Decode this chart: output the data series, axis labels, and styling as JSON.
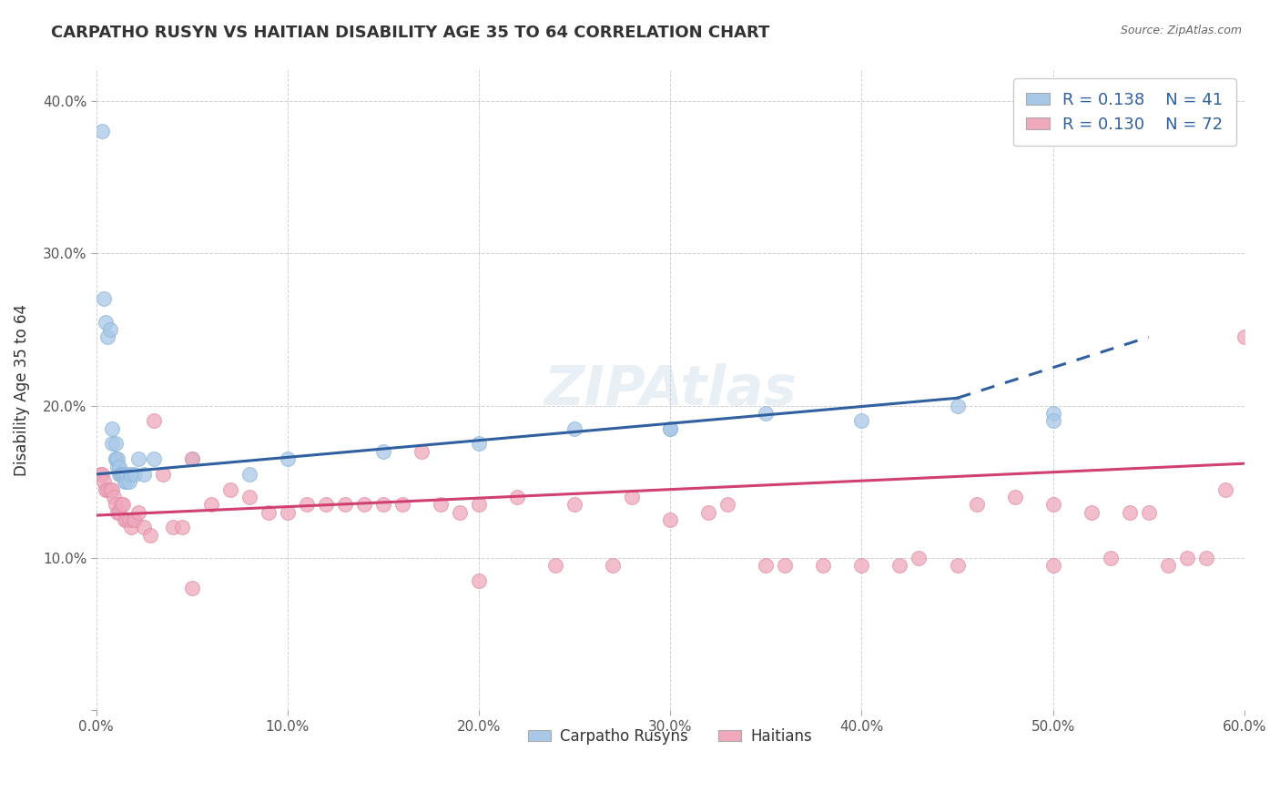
{
  "title": "CARPATHO RUSYN VS HAITIAN DISABILITY AGE 35 TO 64 CORRELATION CHART",
  "source": "Source: ZipAtlas.com",
  "ylabel": "Disability Age 35 to 64",
  "xlim": [
    0.0,
    0.6
  ],
  "ylim": [
    0.0,
    0.42
  ],
  "xticks": [
    0.0,
    0.1,
    0.2,
    0.3,
    0.4,
    0.5,
    0.6
  ],
  "xticklabels": [
    "0.0%",
    "10.0%",
    "20.0%",
    "30.0%",
    "40.0%",
    "50.0%",
    "60.0%"
  ],
  "yticks": [
    0.0,
    0.1,
    0.2,
    0.3,
    0.4
  ],
  "yticklabels": [
    "",
    "10.0%",
    "20.0%",
    "30.0%",
    "40.0%"
  ],
  "r_blue": 0.138,
  "n_blue": 41,
  "r_pink": 0.13,
  "n_pink": 72,
  "legend_labels": [
    "Carpatho Rusyns",
    "Haitians"
  ],
  "blue_color": "#a8c8e8",
  "pink_color": "#f0a8bc",
  "blue_line_color": "#3060a0",
  "pink_line_color": "#d04070",
  "legend_text_color": "#3060a0",
  "background_color": "#ffffff",
  "grid_color": "#cccccc",
  "blue_line_solid_end": 0.45,
  "blue_line_dash_end": 0.55,
  "blue_line_y0": 0.155,
  "blue_line_y_solid_end": 0.205,
  "blue_line_y_dash_end": 0.245,
  "pink_line_y0": 0.128,
  "pink_line_y_end": 0.162,
  "blue_x": [
    0.008,
    0.008,
    0.01,
    0.01,
    0.01,
    0.011,
    0.011,
    0.012,
    0.012,
    0.013,
    0.013,
    0.014,
    0.014,
    0.015,
    0.015,
    0.016,
    0.016,
    0.017,
    0.018,
    0.02,
    0.022,
    0.025,
    0.03,
    0.05,
    0.08,
    0.1,
    0.15,
    0.2,
    0.25,
    0.3,
    0.35,
    0.4,
    0.45,
    0.5,
    0.5,
    0.003,
    0.004,
    0.005,
    0.006,
    0.007,
    0.3
  ],
  "blue_y": [
    0.175,
    0.185,
    0.175,
    0.165,
    0.165,
    0.16,
    0.165,
    0.155,
    0.16,
    0.155,
    0.155,
    0.155,
    0.155,
    0.15,
    0.155,
    0.155,
    0.15,
    0.15,
    0.155,
    0.155,
    0.165,
    0.155,
    0.165,
    0.165,
    0.155,
    0.165,
    0.17,
    0.175,
    0.185,
    0.185,
    0.195,
    0.19,
    0.2,
    0.195,
    0.19,
    0.38,
    0.27,
    0.255,
    0.245,
    0.25,
    0.185
  ],
  "pink_x": [
    0.002,
    0.003,
    0.004,
    0.005,
    0.006,
    0.007,
    0.008,
    0.009,
    0.01,
    0.011,
    0.012,
    0.013,
    0.014,
    0.015,
    0.016,
    0.017,
    0.018,
    0.019,
    0.02,
    0.022,
    0.025,
    0.028,
    0.03,
    0.035,
    0.04,
    0.045,
    0.05,
    0.06,
    0.07,
    0.08,
    0.09,
    0.1,
    0.11,
    0.12,
    0.13,
    0.14,
    0.15,
    0.16,
    0.17,
    0.18,
    0.19,
    0.2,
    0.22,
    0.24,
    0.25,
    0.27,
    0.28,
    0.3,
    0.32,
    0.33,
    0.35,
    0.36,
    0.38,
    0.4,
    0.42,
    0.43,
    0.45,
    0.46,
    0.48,
    0.5,
    0.5,
    0.52,
    0.53,
    0.54,
    0.55,
    0.56,
    0.57,
    0.58,
    0.59,
    0.6,
    0.05,
    0.2
  ],
  "pink_y": [
    0.155,
    0.155,
    0.15,
    0.145,
    0.145,
    0.145,
    0.145,
    0.14,
    0.135,
    0.13,
    0.13,
    0.135,
    0.135,
    0.125,
    0.125,
    0.125,
    0.12,
    0.125,
    0.125,
    0.13,
    0.12,
    0.115,
    0.19,
    0.155,
    0.12,
    0.12,
    0.165,
    0.135,
    0.145,
    0.14,
    0.13,
    0.13,
    0.135,
    0.135,
    0.135,
    0.135,
    0.135,
    0.135,
    0.17,
    0.135,
    0.13,
    0.135,
    0.14,
    0.095,
    0.135,
    0.095,
    0.14,
    0.125,
    0.13,
    0.135,
    0.095,
    0.095,
    0.095,
    0.095,
    0.095,
    0.1,
    0.095,
    0.135,
    0.14,
    0.095,
    0.135,
    0.13,
    0.1,
    0.13,
    0.13,
    0.095,
    0.1,
    0.1,
    0.145,
    0.245,
    0.08,
    0.085
  ]
}
